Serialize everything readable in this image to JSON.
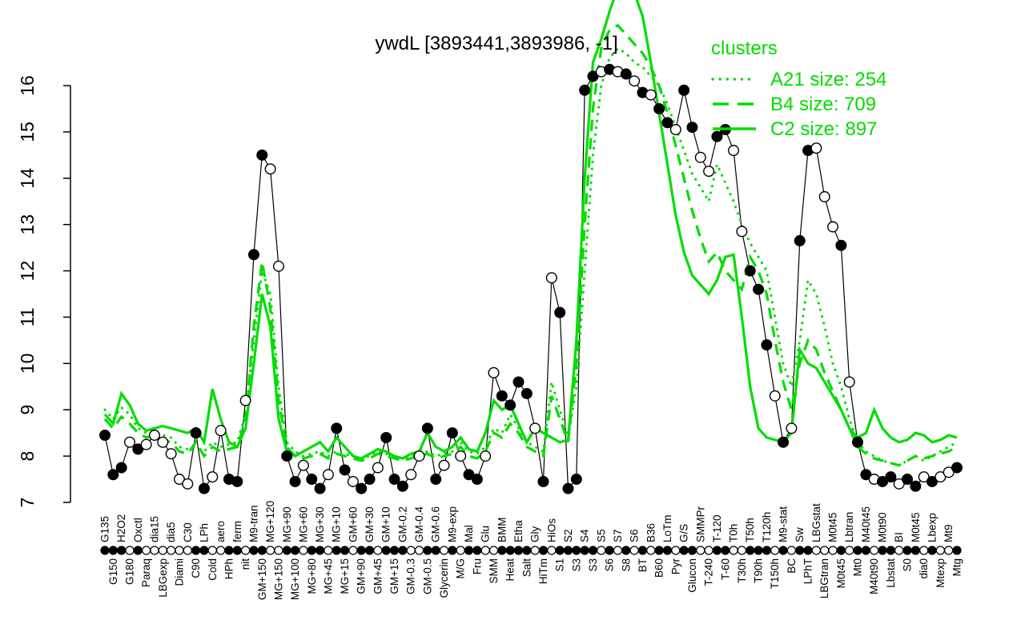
{
  "title": "ywdL [3893441,3893986, -1]",
  "legend": {
    "title": "clusters",
    "entries": [
      {
        "label": "A21 size: 254",
        "style": "dotted"
      },
      {
        "label": "B4 size: 709",
        "style": "dashed"
      },
      {
        "label": "C2 size: 897",
        "style": "solid"
      }
    ]
  },
  "colors": {
    "cluster_green": "#00dd00",
    "series_black": "#000000",
    "marker_open_fill": "#ffffff",
    "background": "#ffffff"
  },
  "chart_data": {
    "type": "line",
    "title": "ywdL [3893441,3893986, -1]",
    "xlabel": "",
    "ylabel": "",
    "ylim": [
      7,
      16
    ],
    "yticks": [
      7,
      8,
      9,
      10,
      11,
      12,
      13,
      14,
      15,
      16
    ],
    "grid": false,
    "legend_position": "top-right",
    "categories": [
      "G135",
      "G150",
      "H2O2",
      "G180",
      "Oxctl",
      "Paraq",
      "dia15",
      "LBGexp",
      "dia5",
      "Diami",
      "C30",
      "C90",
      "LPh",
      "Cold",
      "aero",
      "HPh",
      "ferm",
      "nit",
      "M9-tran",
      "GM+150",
      "MG+120",
      "MG+150",
      "MG+90",
      "MG+100",
      "MG+60",
      "MG+80",
      "MG+30",
      "MG+45",
      "MG+10",
      "MG+15",
      "GM+60",
      "GM+90",
      "GM+30",
      "GM+45",
      "GM+10",
      "GM+15",
      "GM-0.2",
      "GM-0.3",
      "GM-0.4",
      "GM-0.5",
      "GM-0.6",
      "Glycerin",
      "M9-exp",
      "M/G",
      "Mal",
      "Fru",
      "Glu",
      "SMM",
      "BMM",
      "Heat",
      "Etha",
      "Salt",
      "Gly",
      "HiTm",
      "HiOs",
      "S1",
      "S2",
      "S3",
      "S4",
      "S3",
      "S5",
      "S6",
      "S7",
      "S8",
      "S6",
      "BT",
      "B36",
      "B60",
      "LoTm",
      "Pyr",
      "G/S",
      "Glucon",
      "SMMPr",
      "T-240",
      "T-120",
      "T-60",
      "T0h",
      "T30h",
      "T50h",
      "T90h",
      "T120h",
      "T150h",
      "M9-stat",
      "BC",
      "Sw",
      "LPhT",
      "LBGstat",
      "LBGtran",
      "M0t45",
      "M0t45",
      "Lbtran",
      "Mt0",
      "M40t45",
      "M40t90",
      "M0t90",
      "Lbstat",
      "BI",
      "S0",
      "M0t45",
      "dia0",
      "Lbexp",
      "Mtexp",
      "Mt9",
      "Mtg"
    ],
    "series": [
      {
        "name": "ywdL expression",
        "type": "line+markers",
        "color": "#000000",
        "style": "solid",
        "values": [
          8.45,
          7.6,
          7.75,
          8.3,
          8.15,
          8.25,
          8.45,
          8.3,
          8.05,
          7.5,
          7.4,
          8.5,
          7.3,
          7.55,
          8.55,
          7.5,
          7.45,
          9.2,
          12.35,
          14.5,
          14.2,
          12.1,
          8.0,
          7.45,
          7.8,
          7.5,
          7.3,
          7.6,
          8.6,
          7.7,
          7.45,
          7.3,
          7.5,
          7.75,
          8.4,
          7.5,
          7.35,
          7.6,
          8.0,
          8.6,
          7.5,
          7.8,
          8.5,
          8.0,
          7.6,
          7.5,
          8.0,
          9.8,
          9.3,
          9.1,
          9.6,
          9.35,
          8.6,
          7.45,
          11.85,
          11.1,
          7.3,
          7.5,
          15.9,
          16.2,
          16.3,
          16.35,
          16.3,
          16.25,
          16.1,
          15.85,
          15.8,
          15.5,
          15.2,
          15.05,
          15.9,
          15.1,
          14.45,
          14.15,
          14.9,
          15.05,
          14.6,
          12.85,
          12.0,
          11.6,
          10.4,
          9.3,
          8.3,
          8.6,
          12.65,
          14.6,
          14.65,
          13.6,
          12.95,
          12.55,
          9.6,
          8.3,
          7.6,
          7.5,
          7.45,
          7.55,
          7.4,
          7.5,
          7.35,
          7.55,
          7.45,
          7.55,
          7.65,
          7.75
        ],
        "marker_filled": [
          1,
          1,
          1,
          0,
          1,
          0,
          0,
          0,
          0,
          0,
          0,
          1,
          1,
          0,
          0,
          1,
          1,
          0,
          1,
          1,
          0,
          0,
          1,
          1,
          0,
          1,
          1,
          0,
          1,
          1,
          0,
          1,
          1,
          0,
          1,
          1,
          1,
          0,
          0,
          1,
          1,
          0,
          1,
          0,
          1,
          1,
          0,
          0,
          1,
          1,
          1,
          1,
          0,
          1,
          0,
          1,
          1,
          1,
          1,
          1,
          0,
          1,
          0,
          1,
          0,
          1,
          0,
          1,
          1,
          0,
          1,
          1,
          0,
          0,
          1,
          1,
          0,
          0,
          1,
          1,
          1,
          0,
          1,
          0,
          1,
          1,
          0,
          0,
          0,
          1,
          0,
          1,
          1,
          0,
          1,
          1,
          0,
          1,
          1,
          0,
          1,
          0,
          0,
          1
        ]
      },
      {
        "name": "A21 size: 254",
        "type": "line",
        "color": "#00dd00",
        "style": "dotted",
        "values": [
          9.0,
          8.8,
          9.05,
          8.9,
          8.6,
          8.5,
          8.55,
          8.45,
          8.4,
          8.2,
          8.15,
          8.2,
          8.1,
          8.3,
          8.2,
          8.25,
          8.3,
          8.9,
          10.5,
          12.0,
          11.5,
          9.5,
          8.3,
          8.1,
          8.0,
          8.05,
          8.1,
          8.0,
          8.1,
          8.05,
          8.0,
          7.95,
          8.0,
          8.1,
          8.05,
          8.0,
          7.95,
          8.0,
          8.05,
          8.1,
          8.0,
          8.05,
          8.1,
          8.3,
          8.1,
          8.05,
          8.2,
          8.6,
          8.5,
          8.9,
          8.6,
          8.3,
          8.2,
          8.1,
          9.6,
          9.0,
          8.4,
          9.5,
          12.0,
          14.5,
          16.0,
          16.6,
          16.8,
          16.7,
          16.5,
          16.4,
          16.2,
          16.0,
          15.6,
          15.1,
          14.6,
          14.1,
          13.8,
          13.5,
          14.3,
          13.9,
          13.5,
          13.0,
          12.6,
          12.3,
          12.0,
          11.0,
          10.0,
          9.5,
          10.5,
          11.8,
          11.5,
          10.8,
          10.0,
          9.5,
          8.8,
          8.3,
          8.1,
          8.0,
          7.9,
          7.85,
          7.8,
          7.9,
          8.0,
          7.9,
          8.0,
          8.1,
          8.2,
          8.3
        ]
      },
      {
        "name": "B4 size: 709",
        "type": "line",
        "color": "#00dd00",
        "style": "dashed",
        "values": [
          8.8,
          8.6,
          8.85,
          8.7,
          8.5,
          8.4,
          8.45,
          8.35,
          8.3,
          8.1,
          8.05,
          8.3,
          8.0,
          8.2,
          8.1,
          8.15,
          8.2,
          8.8,
          10.8,
          12.2,
          11.2,
          9.2,
          8.2,
          8.0,
          7.95,
          8.0,
          8.05,
          7.95,
          8.05,
          8.0,
          7.95,
          7.9,
          7.95,
          8.05,
          8.0,
          7.95,
          7.9,
          7.95,
          8.0,
          8.05,
          7.95,
          8.0,
          8.05,
          8.2,
          8.0,
          7.95,
          8.1,
          8.5,
          8.4,
          8.7,
          8.5,
          8.2,
          8.1,
          8.0,
          9.3,
          8.8,
          8.3,
          10.0,
          13.0,
          15.5,
          16.8,
          17.2,
          17.3,
          17.1,
          16.9,
          16.7,
          16.4,
          16.0,
          15.4,
          14.7,
          14.0,
          13.3,
          12.7,
          12.2,
          12.4,
          12.0,
          11.8,
          11.6,
          12.3,
          12.0,
          11.5,
          10.5,
          9.6,
          9.0,
          10.0,
          10.5,
          10.3,
          9.8,
          9.4,
          9.0,
          8.6,
          8.2,
          8.05,
          7.95,
          7.9,
          7.85,
          7.8,
          7.9,
          8.0,
          7.95,
          8.0,
          8.05,
          8.1,
          8.2
        ]
      },
      {
        "name": "C2 size: 897",
        "type": "line",
        "color": "#00dd00",
        "style": "solid",
        "values": [
          8.9,
          8.7,
          9.35,
          9.1,
          8.7,
          8.55,
          8.6,
          8.65,
          8.6,
          8.55,
          8.5,
          8.6,
          8.3,
          9.45,
          8.8,
          8.3,
          8.2,
          8.6,
          10.0,
          11.5,
          10.8,
          8.8,
          8.1,
          8.0,
          8.1,
          8.2,
          8.3,
          8.1,
          8.4,
          8.2,
          8.0,
          7.95,
          8.05,
          8.15,
          8.1,
          8.0,
          7.95,
          8.05,
          8.1,
          8.5,
          8.2,
          8.1,
          8.2,
          8.4,
          8.15,
          8.1,
          8.5,
          9.2,
          9.0,
          9.1,
          8.7,
          8.3,
          8.6,
          8.5,
          8.4,
          8.3,
          8.35,
          10.5,
          14.0,
          16.5,
          17.0,
          17.6,
          18.1,
          18.2,
          18.0,
          17.5,
          16.5,
          15.4,
          14.3,
          13.2,
          12.4,
          11.9,
          11.7,
          11.5,
          11.8,
          12.3,
          12.35,
          11.0,
          9.5,
          8.6,
          8.4,
          8.35,
          8.3,
          8.5,
          10.3,
          10.0,
          9.9,
          9.6,
          9.3,
          9.0,
          8.6,
          8.4,
          8.5,
          9.0,
          8.6,
          8.4,
          8.3,
          8.35,
          8.5,
          8.45,
          8.3,
          8.35,
          8.45,
          8.4
        ]
      }
    ]
  }
}
